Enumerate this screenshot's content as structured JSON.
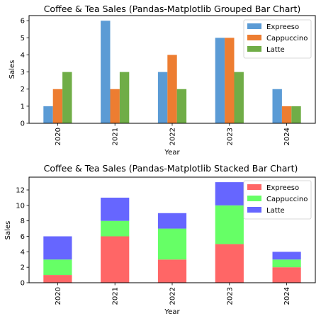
{
  "chart_data": [
    {
      "type": "bar",
      "stacked": false,
      "title": "Coffee & Tea Sales (Pandas-Matplotlib Grouped Bar Chart)",
      "xlabel": "Year",
      "ylabel": "Sales",
      "categories": [
        "2020",
        "2021",
        "2022",
        "2023",
        "2024"
      ],
      "series": [
        {
          "name": "Expreeso",
          "color": "#5b9bd5",
          "values": [
            1,
            6,
            3,
            5,
            2
          ]
        },
        {
          "name": "Cappuccino",
          "color": "#ed7d31",
          "values": [
            2,
            2,
            4,
            5,
            1
          ]
        },
        {
          "name": "Latte",
          "color": "#70ad47",
          "values": [
            3,
            3,
            2,
            3,
            1
          ]
        }
      ],
      "ylim": [
        0,
        6.3
      ],
      "yticks": [
        0,
        1,
        2,
        3,
        4,
        5,
        6
      ],
      "legend_position": "top-right",
      "grid": false
    },
    {
      "type": "bar",
      "stacked": true,
      "title": "Coffee & Tea Sales (Pandas-Matplotlib Stacked Bar Chart)",
      "xlabel": "Year",
      "ylabel": "Sales",
      "categories": [
        "2020",
        "2021",
        "2022",
        "2023",
        "2024"
      ],
      "series": [
        {
          "name": "Expreeso",
          "color": "#ff6666",
          "values": [
            1,
            6,
            3,
            5,
            2
          ]
        },
        {
          "name": "Cappuccino",
          "color": "#66ff66",
          "values": [
            2,
            2,
            4,
            5,
            1
          ]
        },
        {
          "name": "Latte",
          "color": "#6666ff",
          "values": [
            3,
            3,
            2,
            3,
            1
          ]
        }
      ],
      "ylim": [
        0,
        13.65
      ],
      "yticks": [
        0,
        2,
        4,
        6,
        8,
        10,
        12
      ],
      "legend_position": "top-right",
      "grid": false
    }
  ]
}
